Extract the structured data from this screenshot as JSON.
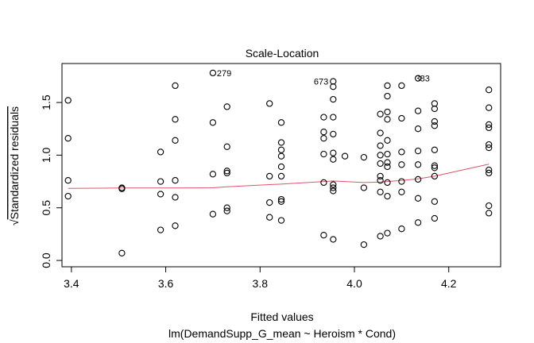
{
  "chart_data": {
    "type": "scatter",
    "title": "Scale-Location",
    "xlabel": "Fitted values",
    "ylabel_prefix": "√",
    "ylabel": "Standardized residuals",
    "subtitle": "lm(DemandSupp_G_mean ~ Heroism * Cond)",
    "xlim": [
      3.38,
      4.31
    ],
    "ylim": [
      -0.06,
      1.87
    ],
    "x_ticks": [
      3.4,
      3.6,
      3.8,
      4.0,
      4.2
    ],
    "y_ticks": [
      0.0,
      0.5,
      1.0,
      1.5
    ],
    "x_tick_labels": [
      "3.4",
      "3.6",
      "3.8",
      "4.0",
      "4.2"
    ],
    "y_tick_labels": [
      "0.0",
      "0.5",
      "1.0",
      "1.5"
    ],
    "points": [
      [
        3.393,
        1.52
      ],
      [
        3.393,
        1.16
      ],
      [
        3.393,
        0.76
      ],
      [
        3.393,
        0.61
      ],
      [
        3.507,
        0.69
      ],
      [
        3.507,
        0.68
      ],
      [
        3.507,
        0.07
      ],
      [
        3.589,
        1.03
      ],
      [
        3.589,
        0.75
      ],
      [
        3.589,
        0.63
      ],
      [
        3.589,
        0.29
      ],
      [
        3.62,
        1.66
      ],
      [
        3.62,
        1.34
      ],
      [
        3.62,
        1.14
      ],
      [
        3.62,
        0.76
      ],
      [
        3.62,
        0.6
      ],
      [
        3.62,
        0.33
      ],
      [
        3.7,
        1.78
      ],
      [
        3.7,
        1.31
      ],
      [
        3.7,
        0.82
      ],
      [
        3.7,
        0.44
      ],
      [
        3.73,
        1.46
      ],
      [
        3.73,
        1.08
      ],
      [
        3.73,
        0.85
      ],
      [
        3.73,
        0.83
      ],
      [
        3.73,
        0.5
      ],
      [
        3.73,
        0.47
      ],
      [
        3.82,
        1.49
      ],
      [
        3.82,
        0.8
      ],
      [
        3.82,
        0.55
      ],
      [
        3.82,
        0.41
      ],
      [
        3.845,
        1.31
      ],
      [
        3.845,
        1.12
      ],
      [
        3.845,
        1.05
      ],
      [
        3.845,
        0.99
      ],
      [
        3.845,
        0.89
      ],
      [
        3.845,
        0.8
      ],
      [
        3.845,
        0.58
      ],
      [
        3.845,
        0.56
      ],
      [
        3.845,
        0.38
      ],
      [
        3.935,
        1.36
      ],
      [
        3.935,
        1.22
      ],
      [
        3.935,
        1.16
      ],
      [
        3.935,
        1.01
      ],
      [
        3.935,
        0.74
      ],
      [
        3.935,
        0.24
      ],
      [
        3.955,
        1.7
      ],
      [
        3.955,
        1.65
      ],
      [
        3.955,
        1.53
      ],
      [
        3.955,
        1.36
      ],
      [
        3.955,
        1.2
      ],
      [
        3.955,
        1.02
      ],
      [
        3.955,
        0.96
      ],
      [
        3.955,
        0.72
      ],
      [
        3.955,
        0.69
      ],
      [
        3.955,
        0.66
      ],
      [
        3.955,
        0.2
      ],
      [
        3.98,
        0.99
      ],
      [
        4.02,
        0.98
      ],
      [
        4.02,
        0.69
      ],
      [
        4.02,
        0.15
      ],
      [
        4.055,
        1.39
      ],
      [
        4.055,
        1.21
      ],
      [
        4.055,
        1.09
      ],
      [
        4.055,
        1.0
      ],
      [
        4.055,
        0.92
      ],
      [
        4.055,
        0.8
      ],
      [
        4.055,
        0.76
      ],
      [
        4.055,
        0.65
      ],
      [
        4.055,
        0.23
      ],
      [
        4.07,
        1.66
      ],
      [
        4.07,
        1.56
      ],
      [
        4.07,
        1.41
      ],
      [
        4.07,
        1.34
      ],
      [
        4.07,
        1.14
      ],
      [
        4.07,
        1.01
      ],
      [
        4.07,
        0.93
      ],
      [
        4.07,
        0.89
      ],
      [
        4.07,
        0.74
      ],
      [
        4.07,
        0.61
      ],
      [
        4.07,
        0.26
      ],
      [
        4.1,
        1.66
      ],
      [
        4.1,
        1.35
      ],
      [
        4.1,
        1.03
      ],
      [
        4.1,
        0.91
      ],
      [
        4.1,
        0.75
      ],
      [
        4.1,
        0.65
      ],
      [
        4.1,
        0.3
      ],
      [
        4.135,
        1.73
      ],
      [
        4.135,
        1.42
      ],
      [
        4.135,
        1.25
      ],
      [
        4.135,
        1.04
      ],
      [
        4.135,
        0.91
      ],
      [
        4.135,
        0.77
      ],
      [
        4.135,
        0.59
      ],
      [
        4.135,
        0.36
      ],
      [
        4.17,
        1.49
      ],
      [
        4.17,
        1.44
      ],
      [
        4.17,
        1.32
      ],
      [
        4.17,
        1.28
      ],
      [
        4.17,
        1.05
      ],
      [
        4.17,
        0.9
      ],
      [
        4.17,
        0.88
      ],
      [
        4.17,
        0.8
      ],
      [
        4.17,
        0.56
      ],
      [
        4.17,
        0.4
      ],
      [
        4.285,
        1.62
      ],
      [
        4.285,
        1.45
      ],
      [
        4.285,
        1.29
      ],
      [
        4.285,
        1.26
      ],
      [
        4.285,
        1.1
      ],
      [
        4.285,
        1.07
      ],
      [
        4.285,
        0.86
      ],
      [
        4.285,
        0.83
      ],
      [
        4.285,
        0.52
      ],
      [
        4.285,
        0.45
      ]
    ],
    "smooth_line": [
      [
        3.393,
        0.685
      ],
      [
        3.507,
        0.688
      ],
      [
        3.589,
        0.688
      ],
      [
        3.62,
        0.688
      ],
      [
        3.7,
        0.69
      ],
      [
        3.73,
        0.7
      ],
      [
        3.82,
        0.72
      ],
      [
        3.845,
        0.725
      ],
      [
        3.935,
        0.75
      ],
      [
        3.955,
        0.755
      ],
      [
        4.02,
        0.74
      ],
      [
        4.055,
        0.745
      ],
      [
        4.07,
        0.75
      ],
      [
        4.1,
        0.76
      ],
      [
        4.135,
        0.775
      ],
      [
        4.17,
        0.8
      ],
      [
        4.285,
        0.915
      ]
    ],
    "annotations": [
      {
        "label": "279",
        "x": 3.7,
        "y": 1.78
      },
      {
        "label": "673",
        "x": 3.955,
        "y": 1.7
      },
      {
        "label": "383",
        "x": 4.17,
        "y": 1.73
      }
    ],
    "colors": {
      "points": "#000000",
      "smooth": "#DF536B",
      "axes": "#000000"
    }
  }
}
